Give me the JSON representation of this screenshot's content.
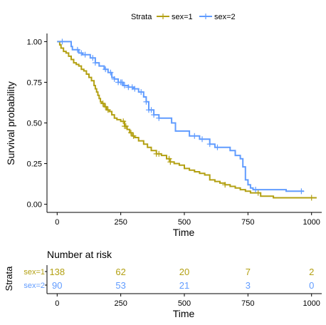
{
  "chart_data": {
    "type": "line",
    "subtype": "kaplan-meier",
    "xlabel": "Time",
    "ylabel": "Survival probability",
    "xlim": [
      -40,
      1040
    ],
    "ylim": [
      -0.05,
      1.05
    ],
    "x_ticks": [
      0,
      250,
      500,
      750,
      1000
    ],
    "y_ticks": [
      0.0,
      0.25,
      0.5,
      0.75,
      1.0
    ],
    "x_tick_labels": [
      "0",
      "250",
      "500",
      "750",
      "1000"
    ],
    "y_tick_labels": [
      "0.00",
      "0.25",
      "0.50",
      "0.75",
      "1.00"
    ],
    "grid": false,
    "legend": {
      "title": "Strata",
      "position": "top",
      "entries": [
        "sex=1",
        "sex=2"
      ]
    },
    "series": [
      {
        "name": "sex=1",
        "color": "#b3a012",
        "points": [
          [
            0,
            1.0
          ],
          [
            10,
            0.98
          ],
          [
            15,
            0.96
          ],
          [
            25,
            0.94
          ],
          [
            35,
            0.93
          ],
          [
            45,
            0.91
          ],
          [
            55,
            0.89
          ],
          [
            65,
            0.87
          ],
          [
            75,
            0.86
          ],
          [
            85,
            0.85
          ],
          [
            95,
            0.83
          ],
          [
            105,
            0.82
          ],
          [
            115,
            0.8
          ],
          [
            125,
            0.78
          ],
          [
            135,
            0.76
          ],
          [
            145,
            0.73
          ],
          [
            150,
            0.71
          ],
          [
            155,
            0.69
          ],
          [
            160,
            0.67
          ],
          [
            165,
            0.65
          ],
          [
            170,
            0.63
          ],
          [
            175,
            0.62
          ],
          [
            185,
            0.6
          ],
          [
            195,
            0.58
          ],
          [
            205,
            0.57
          ],
          [
            215,
            0.55
          ],
          [
            225,
            0.53
          ],
          [
            235,
            0.52
          ],
          [
            250,
            0.51
          ],
          [
            265,
            0.48
          ],
          [
            275,
            0.46
          ],
          [
            285,
            0.44
          ],
          [
            295,
            0.42
          ],
          [
            305,
            0.41
          ],
          [
            320,
            0.39
          ],
          [
            340,
            0.37
          ],
          [
            355,
            0.35
          ],
          [
            370,
            0.33
          ],
          [
            390,
            0.31
          ],
          [
            410,
            0.3
          ],
          [
            430,
            0.28
          ],
          [
            445,
            0.26
          ],
          [
            460,
            0.25
          ],
          [
            480,
            0.24
          ],
          [
            500,
            0.22
          ],
          [
            520,
            0.21
          ],
          [
            540,
            0.2
          ],
          [
            560,
            0.19
          ],
          [
            580,
            0.18
          ],
          [
            600,
            0.15
          ],
          [
            620,
            0.14
          ],
          [
            640,
            0.13
          ],
          [
            660,
            0.12
          ],
          [
            680,
            0.11
          ],
          [
            700,
            0.1
          ],
          [
            720,
            0.09
          ],
          [
            740,
            0.08
          ],
          [
            760,
            0.07
          ],
          [
            800,
            0.05
          ],
          [
            850,
            0.04
          ],
          [
            1020,
            0.04
          ]
        ],
        "censor_times": [
          180,
          190,
          200,
          260,
          265,
          270,
          290,
          300,
          390,
          400,
          440,
          445,
          660,
          790,
          1000
        ]
      },
      {
        "name": "sex=2",
        "color": "#619cff",
        "points": [
          [
            0,
            1.0
          ],
          [
            55,
            0.97
          ],
          [
            60,
            0.95
          ],
          [
            85,
            0.93
          ],
          [
            100,
            0.92
          ],
          [
            130,
            0.9
          ],
          [
            150,
            0.87
          ],
          [
            165,
            0.85
          ],
          [
            185,
            0.83
          ],
          [
            200,
            0.81
          ],
          [
            215,
            0.78
          ],
          [
            225,
            0.77
          ],
          [
            240,
            0.75
          ],
          [
            260,
            0.73
          ],
          [
            280,
            0.72
          ],
          [
            300,
            0.71
          ],
          [
            320,
            0.69
          ],
          [
            340,
            0.66
          ],
          [
            350,
            0.63
          ],
          [
            360,
            0.58
          ],
          [
            380,
            0.55
          ],
          [
            400,
            0.53
          ],
          [
            440,
            0.53
          ],
          [
            450,
            0.5
          ],
          [
            465,
            0.45
          ],
          [
            520,
            0.42
          ],
          [
            560,
            0.4
          ],
          [
            600,
            0.37
          ],
          [
            620,
            0.35
          ],
          [
            680,
            0.33
          ],
          [
            700,
            0.3
          ],
          [
            720,
            0.28
          ],
          [
            730,
            0.23
          ],
          [
            740,
            0.15
          ],
          [
            750,
            0.12
          ],
          [
            760,
            0.1
          ],
          [
            770,
            0.09
          ],
          [
            900,
            0.08
          ],
          [
            970,
            0.08
          ]
        ],
        "censor_times": [
          20,
          80,
          95,
          110,
          140,
          150,
          190,
          210,
          225,
          240,
          250,
          255,
          265,
          280,
          295,
          305,
          330,
          350,
          360,
          370,
          380,
          400,
          540,
          570,
          600,
          630,
          780,
          960
        ]
      }
    ],
    "risk_table": {
      "title": "Number at risk",
      "ylabel": "Strata",
      "xlabel": "Time",
      "times": [
        0,
        250,
        500,
        750,
        1000
      ],
      "time_labels": [
        "0",
        "250",
        "500",
        "750",
        "1000"
      ],
      "rows": [
        {
          "label": "sex=1",
          "color": "#b3a012",
          "values": [
            "138",
            "62",
            "20",
            "7",
            "2"
          ]
        },
        {
          "label": "sex=2",
          "color": "#619cff",
          "values": [
            "90",
            "53",
            "21",
            "3",
            "0"
          ]
        }
      ]
    }
  }
}
